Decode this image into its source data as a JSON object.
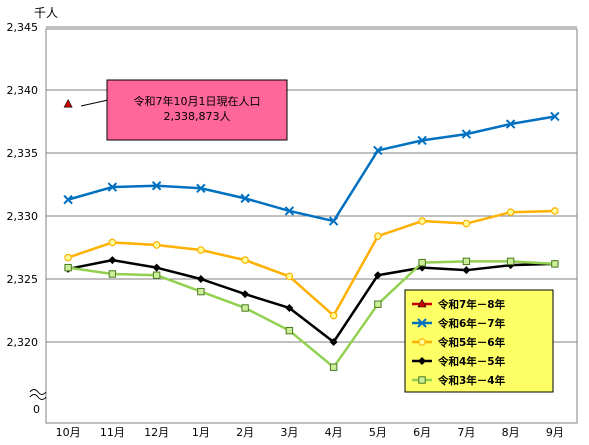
{
  "chart_data": {
    "type": "line",
    "unit_label": "千人",
    "categories": [
      "10月",
      "11月",
      "12月",
      "1月",
      "2月",
      "3月",
      "4月",
      "5月",
      "6月",
      "7月",
      "8月",
      "9月"
    ],
    "y_ticks": [
      "2,345",
      "2,340",
      "2,335",
      "2,330",
      "2,325",
      "2,320"
    ],
    "y_break_label": "0",
    "ylim": [
      2316,
      2345
    ],
    "grid": true,
    "legend_position": "bottom-right",
    "legend_background": "#ffff66",
    "series": [
      {
        "name": "令和7年－8年",
        "color": "#cc0000",
        "marker": "triangle",
        "values": [
          2338.873,
          null,
          null,
          null,
          null,
          null,
          null,
          null,
          null,
          null,
          null,
          null
        ]
      },
      {
        "name": "令和6年－7年",
        "color": "#0070c0",
        "marker": "x",
        "values": [
          2331.3,
          2332.3,
          2332.4,
          2332.2,
          2331.4,
          2330.4,
          2329.6,
          2335.2,
          2336.0,
          2336.5,
          2337.3,
          2337.9
        ]
      },
      {
        "name": "令和5年－6年",
        "color": "#ffb000",
        "marker": "circle",
        "values": [
          2326.7,
          2327.9,
          2327.7,
          2327.3,
          2326.5,
          2325.2,
          2322.1,
          2328.4,
          2329.6,
          2329.4,
          2330.3,
          2330.4
        ]
      },
      {
        "name": "令和4年－5年",
        "color": "#000000",
        "marker": "diamond",
        "values": [
          2325.8,
          2326.5,
          2325.9,
          2325.0,
          2323.8,
          2322.7,
          2320.0,
          2325.3,
          2325.9,
          2325.7,
          2326.1,
          2326.2
        ]
      },
      {
        "name": "令和3年－4年",
        "color": "#92d050",
        "marker": "square",
        "values": [
          2325.9,
          2325.4,
          2325.3,
          2324.0,
          2322.7,
          2320.9,
          2318.0,
          2323.0,
          2326.3,
          2326.4,
          2326.4,
          2326.2
        ]
      }
    ],
    "annotation": {
      "line1": "令和7年10月1日現在人口",
      "line2": "2,338,873人",
      "background": "#ff6699"
    }
  }
}
